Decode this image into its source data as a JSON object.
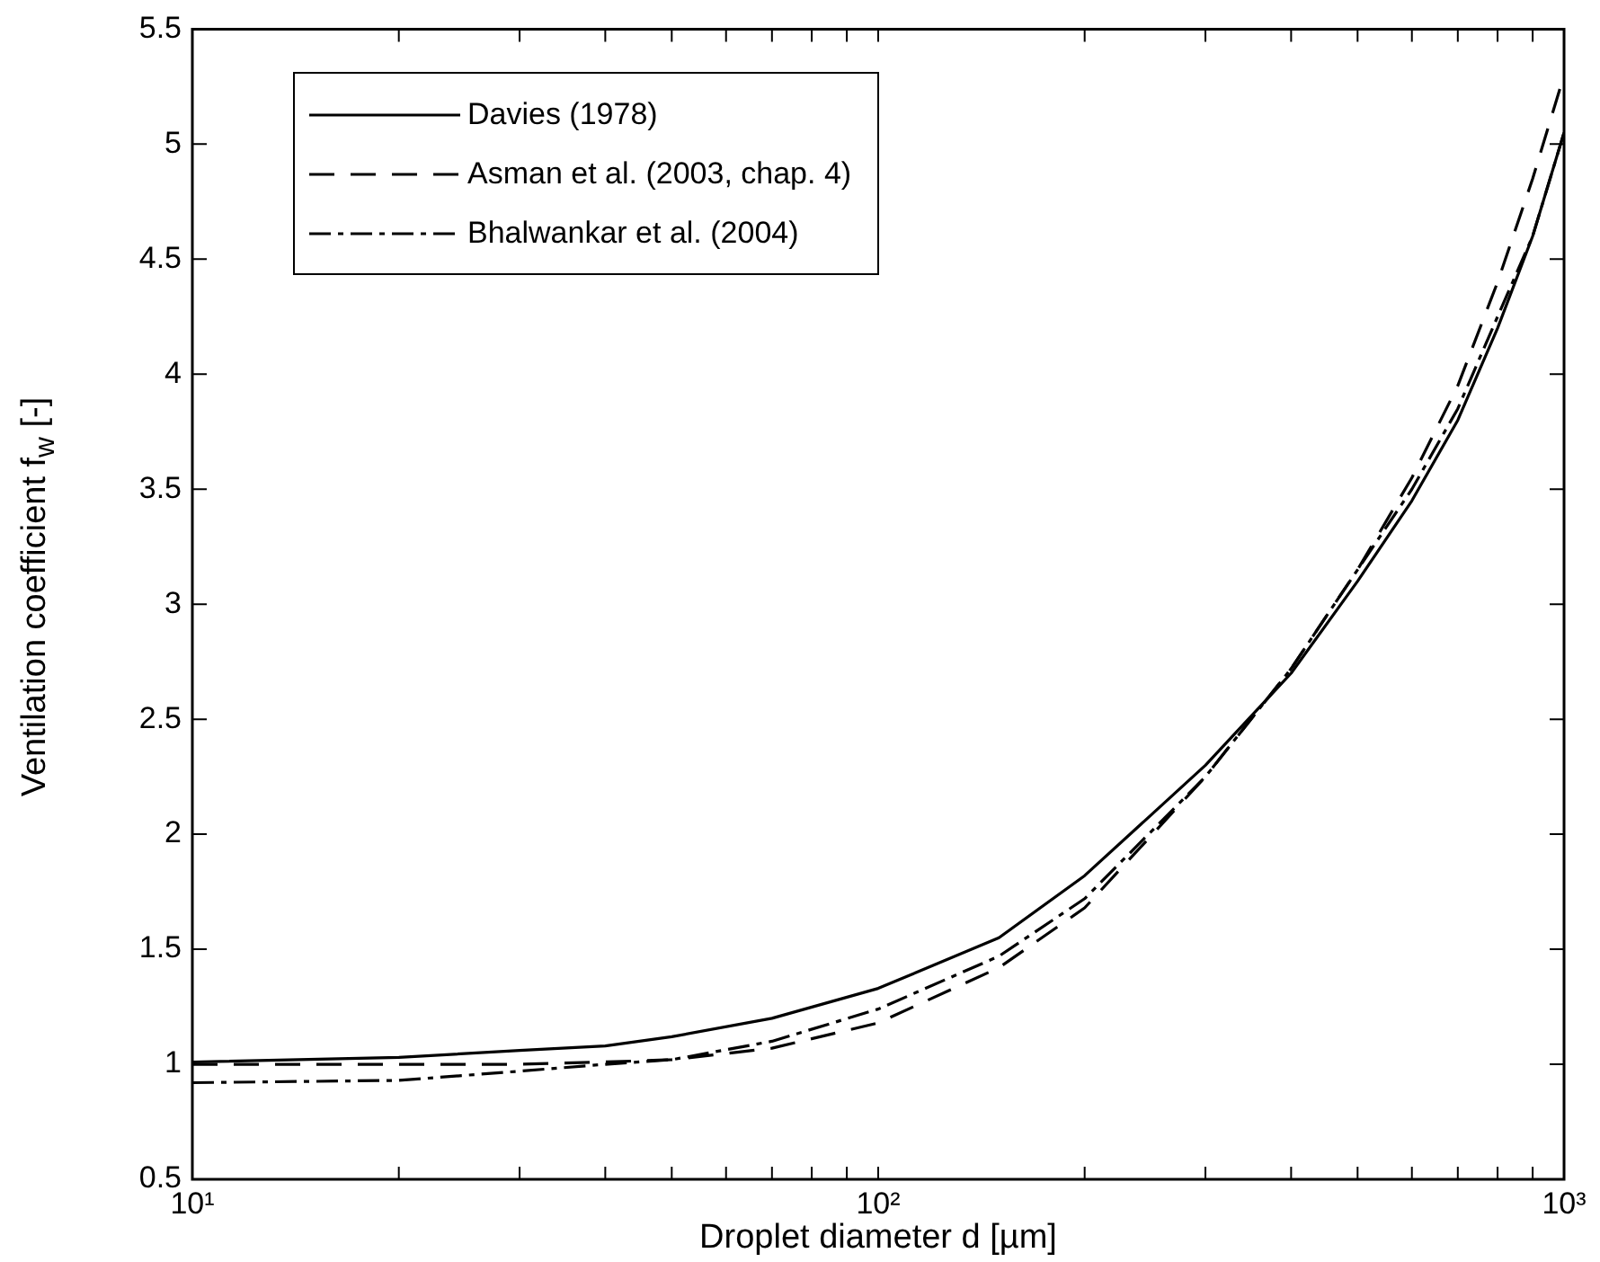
{
  "chart_data": {
    "type": "line",
    "xlabel": "Droplet diameter d [µm]",
    "ylabel": "Ventilation coefficient  f$_{w}$ [-]",
    "x": [
      10,
      20,
      30,
      40,
      50,
      70,
      100,
      150,
      200,
      300,
      400,
      500,
      600,
      700,
      800,
      900,
      1000
    ],
    "series": [
      {
        "name": "Davies (1978)",
        "color": "#000000",
        "line_style": "solid",
        "values": [
          1.01,
          1.03,
          1.06,
          1.08,
          1.12,
          1.2,
          1.33,
          1.55,
          1.82,
          2.3,
          2.7,
          3.1,
          3.45,
          3.8,
          4.2,
          4.6,
          5.05
        ]
      },
      {
        "name": "Asman et al. (2003, chap. 4)",
        "color": "#000000",
        "line_style": "dashed",
        "values": [
          1.0,
          1.0,
          1.0,
          1.01,
          1.02,
          1.07,
          1.18,
          1.42,
          1.68,
          2.25,
          2.72,
          3.15,
          3.55,
          3.95,
          4.4,
          4.85,
          5.3
        ]
      },
      {
        "name": "Bhalwankar et al. (2004)",
        "color": "#000000",
        "line_style": "dashdot",
        "values": [
          0.92,
          0.93,
          0.97,
          1.0,
          1.02,
          1.1,
          1.24,
          1.47,
          1.72,
          2.25,
          2.72,
          3.15,
          3.5,
          3.85,
          4.25,
          4.6,
          5.05
        ]
      }
    ],
    "log": "x",
    "xlim": [
      10,
      1000
    ],
    "xticks": [
      {
        "value": 10,
        "label": "10¹"
      },
      {
        "value": 20,
        "label": null
      },
      {
        "value": 30,
        "label": null
      },
      {
        "value": 40,
        "label": null
      },
      {
        "value": 50,
        "label": null
      },
      {
        "value": 60,
        "label": null
      },
      {
        "value": 70,
        "label": null
      },
      {
        "value": 80,
        "label": null
      },
      {
        "value": 90,
        "label": null
      },
      {
        "value": 100,
        "label": "10²"
      },
      {
        "value": 200,
        "label": null
      },
      {
        "value": 300,
        "label": null
      },
      {
        "value": 400,
        "label": null
      },
      {
        "value": 500,
        "label": null
      },
      {
        "value": 600,
        "label": null
      },
      {
        "value": 700,
        "label": null
      },
      {
        "value": 800,
        "label": null
      },
      {
        "value": 900,
        "label": null
      },
      {
        "value": 1000,
        "label": "10³"
      }
    ],
    "ylim": [
      0.5,
      5.5
    ],
    "yticks": [
      0.5,
      1,
      1.5,
      2,
      2.5,
      3,
      3.5,
      4,
      4.5,
      5,
      5.5
    ],
    "grid": false,
    "legend": "top left",
    "marker": "none"
  }
}
